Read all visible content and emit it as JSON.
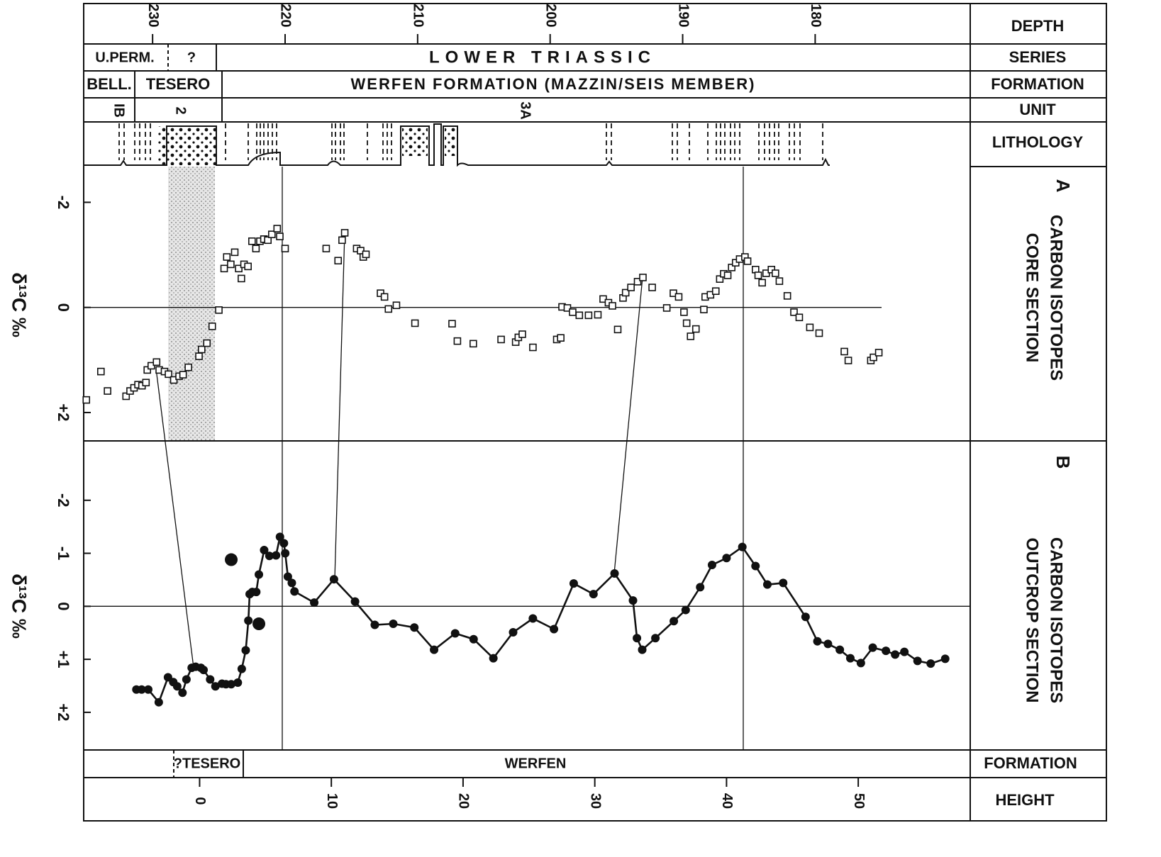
{
  "figure": {
    "row_labels": {
      "depth": "DEPTH",
      "series": "SERIES",
      "formation": "FORMATION",
      "unit": "UNIT",
      "lithology": "LITHOLOGY",
      "formation_bottom": "FORMATION",
      "height": "HEIGHT"
    },
    "series_row": [
      "U.PERM.",
      "?",
      "LOWER TRIASSIC"
    ],
    "formation_row": [
      "BELL.",
      "TESERO",
      "WERFEN FORMATION (MAZZIN/SEIS MEMBER)"
    ],
    "unit_row": [
      "IB",
      "2",
      "3A"
    ],
    "bottom_formation_row": [
      "?TESERO",
      "WERFEN"
    ]
  },
  "chart_data": [
    {
      "type": "scatter",
      "panel": "A",
      "title_lines": [
        "CARBON ISOTOPES",
        "CORE SECTION"
      ],
      "y_label": "δ¹³C ‰",
      "x": [
        235.0,
        233.9,
        233.4,
        232.0,
        231.7,
        231.4,
        231.1,
        230.8,
        230.5,
        230.4,
        230.1,
        229.7,
        229.5,
        229.1,
        228.8,
        228.4,
        228.0,
        227.7,
        227.3,
        226.5,
        226.3,
        225.9,
        225.5,
        225.0,
        224.6,
        224.4,
        224.1,
        223.8,
        223.5,
        223.3,
        223.1,
        222.8,
        222.5,
        222.2,
        221.9,
        221.6,
        221.3,
        221.0,
        220.6,
        220.4,
        220.0,
        216.9,
        216.0,
        215.7,
        215.5,
        214.6,
        214.3,
        214.1,
        213.9,
        212.8,
        212.5,
        212.2,
        211.6,
        210.2,
        207.4,
        207.0,
        205.8,
        203.7,
        202.6,
        202.4,
        202.1,
        201.3,
        199.5,
        199.2,
        199.1,
        198.7,
        198.3,
        197.8,
        197.1,
        196.4,
        196.0,
        195.6,
        195.3,
        194.9,
        194.5,
        194.3,
        193.9,
        193.4,
        193.0,
        192.3,
        191.2,
        190.7,
        190.3,
        189.9,
        189.7,
        189.4,
        189.0,
        188.4,
        188.3,
        187.9,
        187.5,
        187.2,
        186.9,
        186.6,
        186.3,
        186.0,
        185.7,
        185.3,
        185.1,
        184.5,
        184.3,
        184.0,
        183.7,
        183.3,
        183.0,
        182.7,
        182.1,
        181.6,
        181.2,
        180.4,
        179.7,
        177.8,
        177.5,
        175.8,
        175.6,
        175.2
      ],
      "values": [
        1.76,
        1.22,
        1.59,
        1.69,
        1.59,
        1.53,
        1.47,
        1.49,
        1.43,
        1.19,
        1.11,
        1.04,
        1.19,
        1.22,
        1.27,
        1.38,
        1.31,
        1.28,
        1.14,
        0.93,
        0.8,
        0.68,
        0.36,
        0.05,
        -0.74,
        -0.96,
        -0.82,
        -1.05,
        -0.74,
        -0.55,
        -0.82,
        -0.78,
        -1.26,
        -1.12,
        -1.26,
        -1.3,
        -1.28,
        -1.39,
        -1.5,
        -1.35,
        -1.12,
        -1.12,
        -0.89,
        -1.28,
        -1.42,
        -1.12,
        -1.08,
        -0.96,
        -1.01,
        -0.27,
        -0.2,
        0.03,
        -0.04,
        0.3,
        0.31,
        0.64,
        0.69,
        0.61,
        0.66,
        0.57,
        0.51,
        0.76,
        0.61,
        0.58,
        -0.01,
        0.01,
        0.09,
        0.15,
        0.15,
        0.14,
        -0.16,
        -0.09,
        -0.03,
        0.42,
        -0.18,
        -0.28,
        -0.38,
        -0.49,
        -0.57,
        -0.38,
        0.01,
        -0.27,
        -0.2,
        0.09,
        0.3,
        0.55,
        0.41,
        0.04,
        -0.2,
        -0.24,
        -0.31,
        -0.54,
        -0.64,
        -0.61,
        -0.76,
        -0.85,
        -0.92,
        -0.96,
        -0.88,
        -0.72,
        -0.61,
        -0.47,
        -0.65,
        -0.72,
        -0.65,
        -0.5,
        -0.22,
        0.09,
        0.19,
        0.38,
        0.49,
        0.84,
        1.01,
        1.01,
        0.95,
        0.86
      ],
      "xlim": [
        235.2,
        168.3
      ],
      "xticks": [
        230,
        220,
        210,
        200,
        190,
        180
      ],
      "ylim": [
        2.54,
        -2.68
      ],
      "yticks": [
        -2,
        0,
        {
          "value": 2,
          "label": "+2"
        }
      ],
      "marker": "open-square",
      "color": "#111111"
    },
    {
      "type": "line",
      "panel": "B",
      "title_lines": [
        "CARBON ISOTOPES",
        "OUTCROP SECTION"
      ],
      "y_label": "δ¹³C ‰",
      "x": [
        -4.8,
        -4.4,
        -3.9,
        -3.1,
        -2.4,
        -2.0,
        -1.7,
        -1.3,
        -1.0,
        -0.6,
        -0.3,
        0.1,
        0.3,
        0.8,
        1.2,
        1.7,
        2.0,
        2.4,
        2.9,
        3.2,
        3.5,
        3.7,
        3.8,
        4.0,
        4.3,
        4.5,
        4.9,
        5.3,
        5.8,
        6.1,
        6.4,
        6.5,
        6.7,
        7.0,
        7.2,
        8.7,
        10.2,
        11.8,
        13.3,
        14.7,
        16.3,
        17.8,
        19.4,
        20.8,
        22.3,
        23.8,
        25.3,
        26.9,
        28.4,
        29.9,
        31.5,
        32.9,
        33.2,
        33.6,
        34.6,
        36.0,
        36.9,
        38.0,
        38.9,
        40.0,
        41.2,
        42.2,
        43.1,
        44.3,
        46.0,
        46.9,
        47.7,
        48.6,
        49.4,
        50.2,
        51.1,
        52.1,
        52.8,
        53.5,
        54.5,
        55.5,
        56.6
      ],
      "values": [
        1.57,
        1.57,
        1.57,
        1.81,
        1.34,
        1.43,
        1.51,
        1.63,
        1.38,
        1.16,
        1.14,
        1.16,
        1.2,
        1.38,
        1.51,
        1.46,
        1.47,
        1.47,
        1.44,
        1.18,
        0.83,
        0.27,
        -0.23,
        -0.27,
        -0.27,
        -0.6,
        -1.06,
        -0.95,
        -0.96,
        -1.31,
        -1.19,
        -1.0,
        -0.56,
        -0.44,
        -0.28,
        -0.07,
        -0.51,
        -0.09,
        0.35,
        0.33,
        0.4,
        0.82,
        0.51,
        0.62,
        0.98,
        0.49,
        0.23,
        0.43,
        -0.43,
        -0.23,
        -0.62,
        -0.11,
        0.6,
        0.82,
        0.6,
        0.28,
        0.07,
        -0.36,
        -0.78,
        -0.91,
        -1.12,
        -0.76,
        -0.41,
        -0.44,
        0.2,
        0.66,
        0.71,
        0.82,
        0.98,
        1.07,
        0.78,
        0.84,
        0.91,
        0.86,
        1.03,
        1.08,
        0.99
      ],
      "extra_points": {
        "x": [
          2.4,
          4.5
        ],
        "values": [
          -0.88,
          0.33
        ]
      },
      "xlim": [
        -8.8,
        58.5
      ],
      "xticks": [
        0,
        10,
        20,
        30,
        40,
        50
      ],
      "ylim": [
        2.71,
        -3.12
      ],
      "yticks": [
        -2,
        -1,
        0,
        {
          "value": 1,
          "label": "+1"
        },
        {
          "value": 2,
          "label": "+2"
        }
      ],
      "marker": "filled-circle",
      "color": "#111111"
    }
  ]
}
